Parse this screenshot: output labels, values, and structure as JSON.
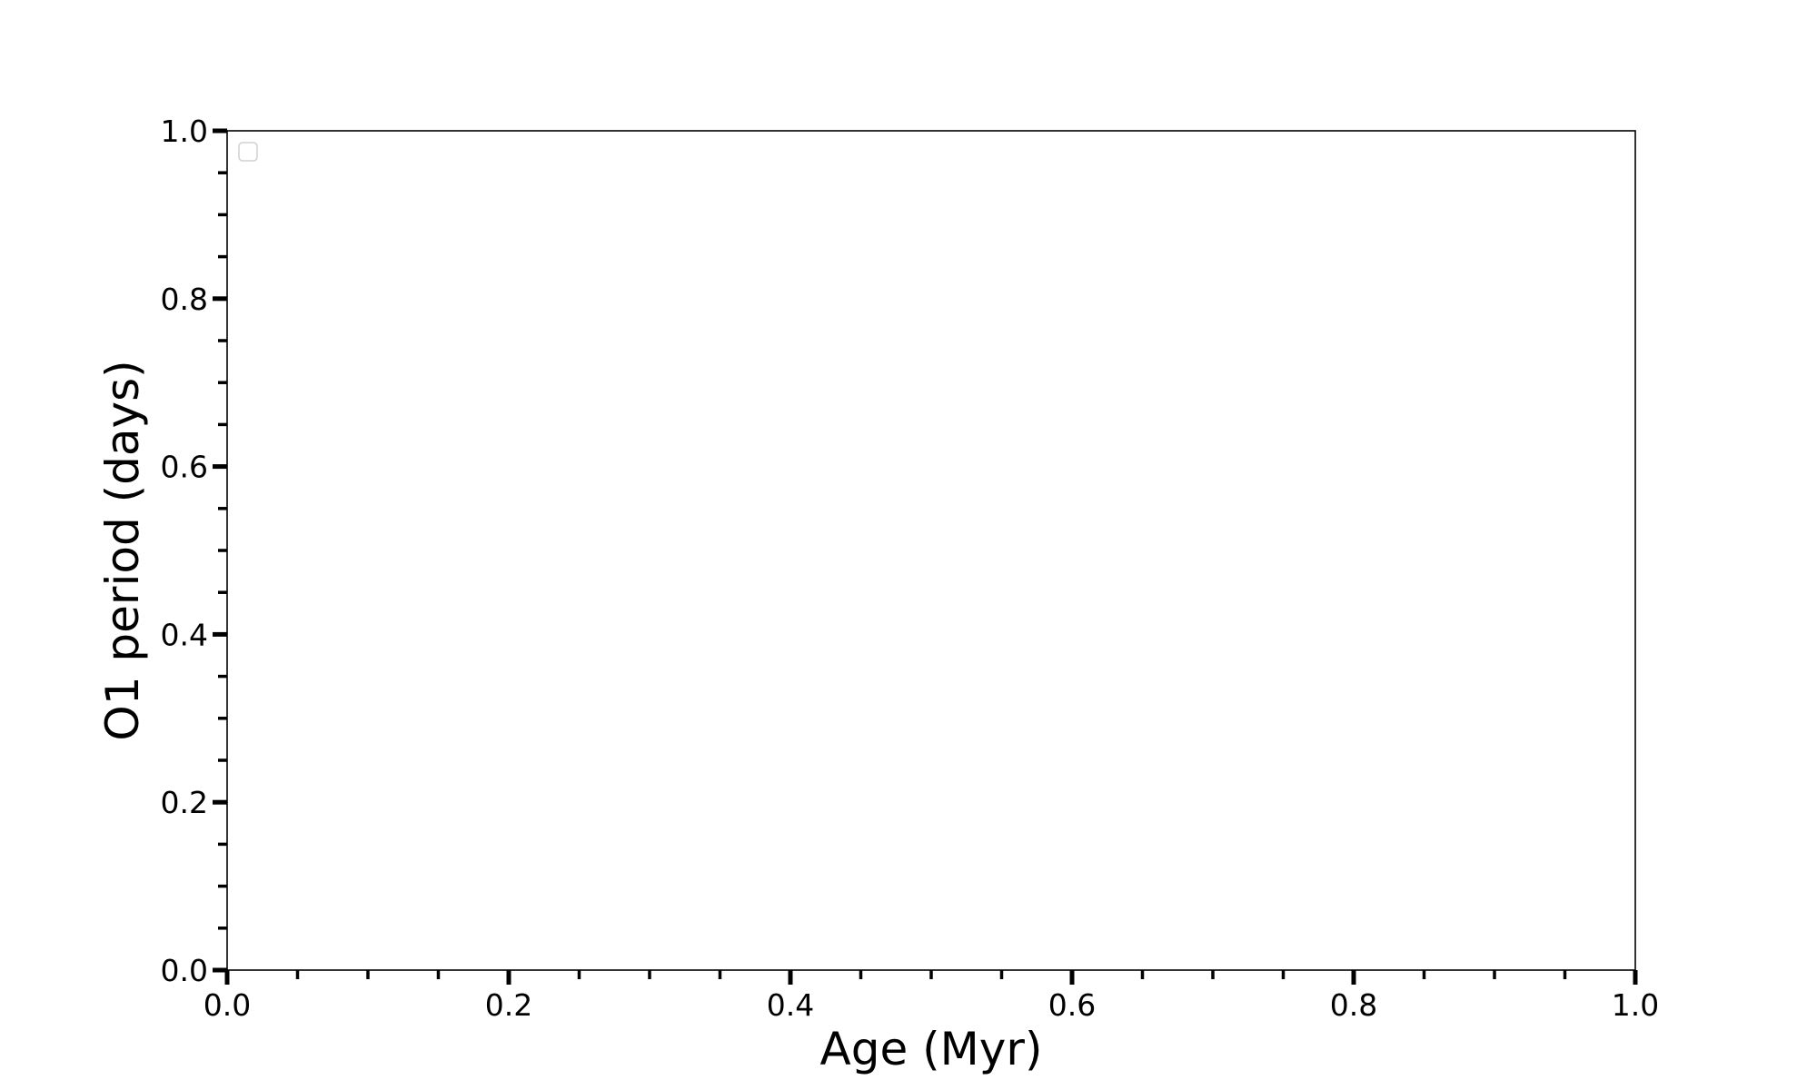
{
  "chart_data": {
    "type": "line",
    "title": "",
    "xlabel": "Age (Myr)",
    "ylabel": "O1 period (days)",
    "xlim": [
      0.0,
      1.0
    ],
    "ylim": [
      0.0,
      1.0
    ],
    "xticks": [
      "0.0",
      "0.2",
      "0.4",
      "0.6",
      "0.8",
      "1.0"
    ],
    "yticks": [
      "0.0",
      "0.2",
      "0.4",
      "0.6",
      "0.8",
      "1.0"
    ],
    "minor_tick_step": 0.05,
    "grid": false,
    "legend": {
      "placement": "top-left",
      "entries": []
    },
    "series": []
  }
}
